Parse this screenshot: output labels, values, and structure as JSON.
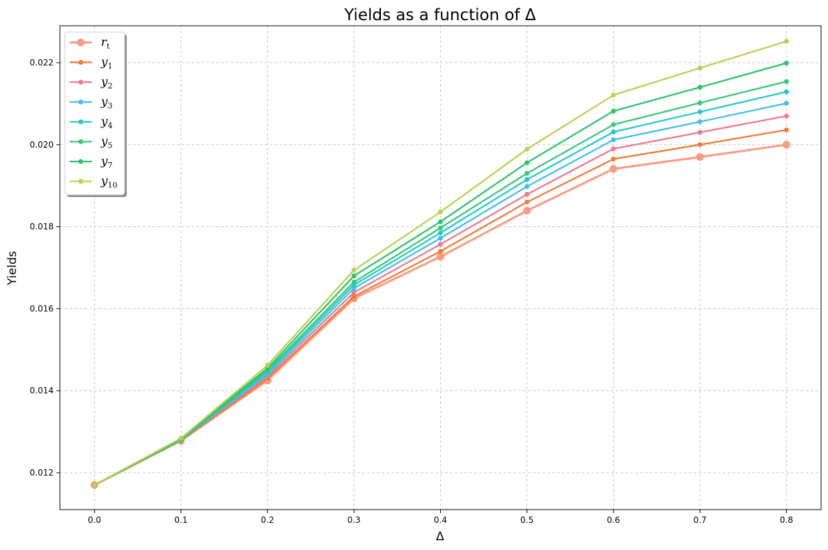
{
  "chart_data": {
    "type": "line",
    "title": "Yields as a function of Δ",
    "xlabel": "Δ",
    "ylabel": "Yields",
    "xlim": [
      -0.04,
      0.84
    ],
    "ylim": [
      0.0111,
      0.0229
    ],
    "x_ticks": [
      "0.0",
      "0.1",
      "0.2",
      "0.3",
      "0.4",
      "0.5",
      "0.6",
      "0.7",
      "0.8"
    ],
    "y_ticks": [
      "0.012",
      "0.014",
      "0.016",
      "0.018",
      "0.020",
      "0.022"
    ],
    "grid": true,
    "legend_position": "top-left",
    "x": [
      0.0,
      0.1,
      0.2,
      0.3,
      0.4,
      0.5,
      0.6,
      0.7,
      0.8
    ],
    "series": [
      {
        "name": "r_t",
        "label_main": "r",
        "label_sub": "t",
        "color": "#f99b83",
        "values": [
          0.0117,
          0.01278,
          0.01425,
          0.01625,
          0.01727,
          0.01839,
          0.01941,
          0.0197,
          0.02
        ]
      },
      {
        "name": "y_1",
        "label_main": "y",
        "label_sub": "1",
        "color": "#ee7b36",
        "values": [
          0.0117,
          0.01278,
          0.0143,
          0.0163,
          0.0174,
          0.0186,
          0.01965,
          0.02,
          0.02036
        ]
      },
      {
        "name": "y_2",
        "label_main": "y",
        "label_sub": "2",
        "color": "#f07890",
        "values": [
          0.0117,
          0.01279,
          0.01435,
          0.0164,
          0.01757,
          0.01879,
          0.0199,
          0.0203,
          0.0207
        ]
      },
      {
        "name": "y_3",
        "label_main": "y",
        "label_sub": "3",
        "color": "#45bdf0",
        "values": [
          0.0117,
          0.0128,
          0.0144,
          0.0165,
          0.01772,
          0.01898,
          0.02012,
          0.02056,
          0.02101
        ]
      },
      {
        "name": "y_4",
        "label_main": "y",
        "label_sub": "4",
        "color": "#24cbc6",
        "values": [
          0.0117,
          0.0128,
          0.01445,
          0.01658,
          0.01785,
          0.01915,
          0.02031,
          0.0208,
          0.02129
        ]
      },
      {
        "name": "y_5",
        "label_main": "y",
        "label_sub": "5",
        "color": "#36c97a",
        "values": [
          0.0117,
          0.01281,
          0.0145,
          0.01665,
          0.01797,
          0.0193,
          0.02049,
          0.02102,
          0.02154
        ]
      },
      {
        "name": "y_7",
        "label_main": "y",
        "label_sub": "7",
        "color": "#2dc46c",
        "values": [
          0.0117,
          0.01282,
          0.01455,
          0.0168,
          0.01812,
          0.01956,
          0.02082,
          0.0214,
          0.02199
        ]
      },
      {
        "name": "y_10",
        "label_main": "y",
        "label_sub": "10",
        "color": "#b3d450",
        "values": [
          0.0117,
          0.01284,
          0.01462,
          0.01694,
          0.01836,
          0.01989,
          0.02121,
          0.02187,
          0.02252
        ]
      }
    ]
  }
}
